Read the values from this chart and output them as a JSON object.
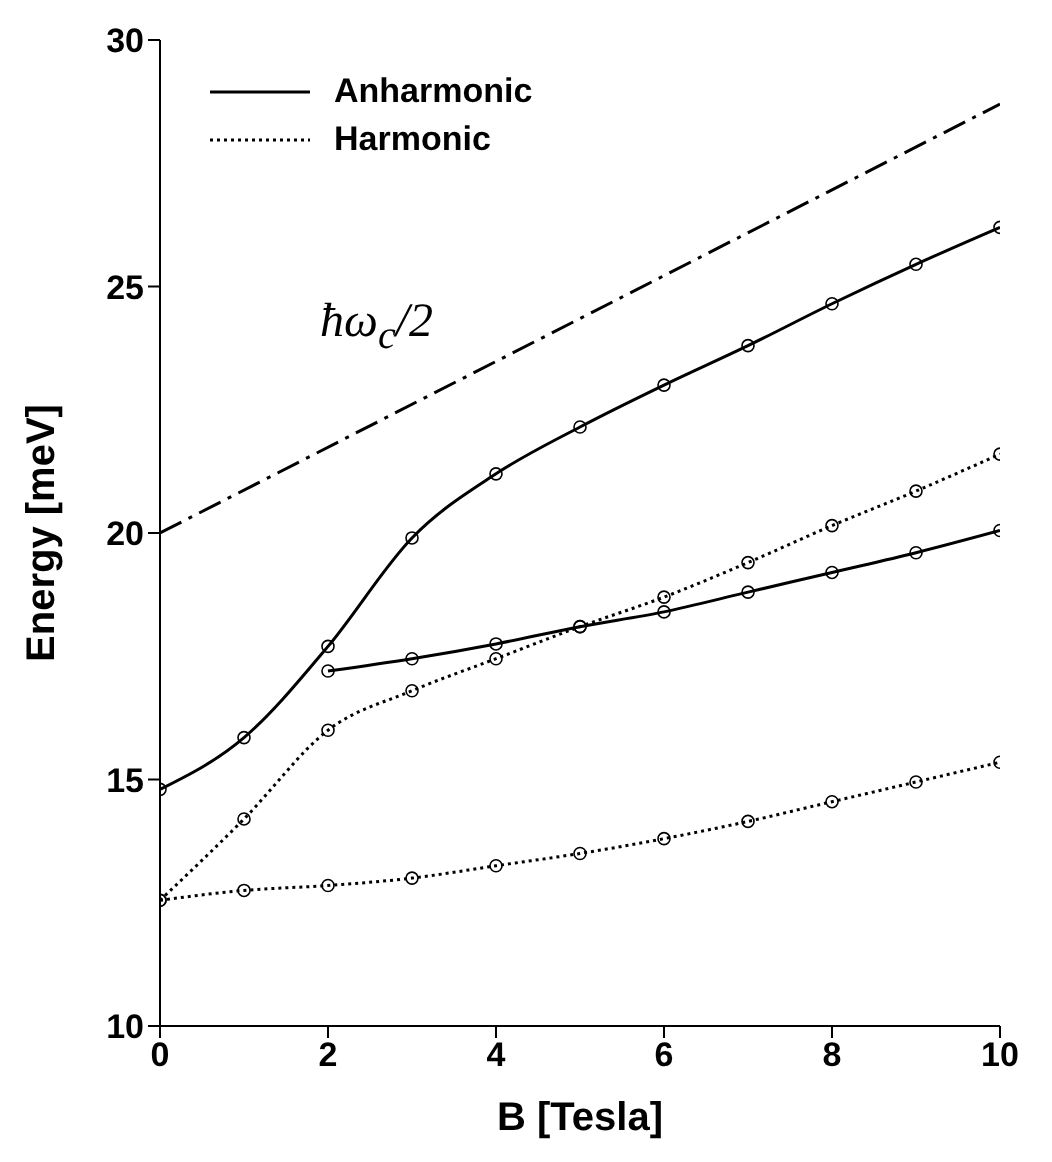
{
  "chart_data": {
    "type": "line",
    "xlabel": "B [Tesla]",
    "ylabel": "Energy [meV]",
    "xlim": [
      0,
      10
    ],
    "ylim": [
      10,
      30
    ],
    "xticks": [
      0,
      2,
      4,
      6,
      8,
      10
    ],
    "yticks": [
      10,
      15,
      20,
      25,
      30
    ],
    "legend": "top left",
    "marker": "circle",
    "series": [
      {
        "name": "Anharmonic",
        "color": "#000000",
        "line_style": "solid",
        "x": [
          0,
          1,
          2,
          3,
          4,
          5,
          6,
          7,
          8,
          9,
          10
        ],
        "values": [
          14.8,
          15.85,
          17.7,
          19.9,
          21.2,
          22.15,
          23.0,
          23.8,
          24.65,
          25.45,
          26.2
        ]
      },
      {
        "color": "#000000",
        "line_style": "solid",
        "x": [
          2,
          3,
          4,
          5,
          6,
          7,
          8,
          9,
          10
        ],
        "values": [
          17.2,
          17.45,
          17.75,
          18.1,
          18.4,
          18.8,
          19.2,
          19.6,
          20.05
        ]
      },
      {
        "name": "Harmonic",
        "color": "#000000",
        "line_style": "dotted",
        "x": [
          0,
          1,
          2,
          3,
          4,
          5,
          6,
          7,
          8,
          9,
          10
        ],
        "values": [
          12.55,
          14.2,
          16.0,
          16.8,
          17.45,
          18.1,
          18.7,
          19.4,
          20.15,
          20.85,
          21.6
        ]
      },
      {
        "color": "#000000",
        "line_style": "dotted",
        "x": [
          0,
          1,
          2,
          3,
          4,
          5,
          6,
          7,
          8,
          9,
          10
        ],
        "values": [
          12.55,
          12.75,
          12.85,
          13.0,
          13.25,
          13.5,
          13.8,
          14.15,
          14.55,
          14.95,
          15.35
        ]
      },
      {
        "color": "#000000",
        "line_style": "dashed",
        "marker": "none",
        "x": [
          0,
          10
        ],
        "values": [
          20,
          28.7
        ]
      }
    ],
    "annotations": [
      "ħω$_{c}$/2"
    ]
  }
}
